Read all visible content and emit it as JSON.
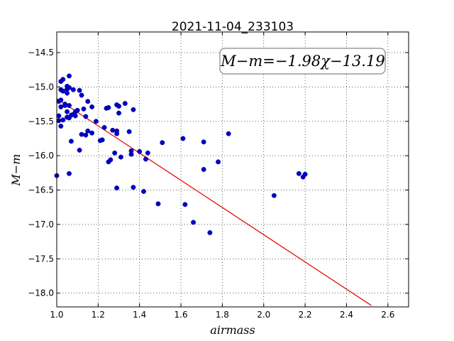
{
  "chart_data": {
    "type": "scatter",
    "title": "2021-11-04_233103",
    "xlabel": "airmass",
    "ylabel": "M−m",
    "annotation": "M−m=−1.98χ−13.19",
    "xlim": [
      1.0,
      2.7
    ],
    "ylim": [
      -18.2,
      -14.2
    ],
    "xticks": [
      1.0,
      1.2,
      1.4,
      1.6,
      1.8,
      2.0,
      2.2,
      2.4,
      2.6
    ],
    "xtick_labels": [
      "1.0",
      "1.2",
      "1.4",
      "1.6",
      "1.8",
      "2.0",
      "2.2",
      "2.4",
      "2.6"
    ],
    "yticks": [
      -14.5,
      -15.0,
      -15.5,
      -16.0,
      -16.5,
      -17.0,
      -17.5,
      -18.0
    ],
    "ytick_labels": [
      "−14.5",
      "−15.0",
      "−15.5",
      "−16.0",
      "−16.5",
      "−17.0",
      "−17.5",
      "−18.0"
    ],
    "grid": true,
    "colors": {
      "points": "#0000c8",
      "fit": "#e00000",
      "frame": "#000000"
    },
    "fit_line": {
      "slope": -1.98,
      "intercept": -13.19,
      "x_range": [
        1.0,
        2.52
      ]
    },
    "points": [
      [
        1.0,
        -16.29
      ],
      [
        1.01,
        -15.21
      ],
      [
        1.01,
        -15.49
      ],
      [
        1.01,
        -15.42
      ],
      [
        1.02,
        -14.92
      ],
      [
        1.02,
        -15.19
      ],
      [
        1.02,
        -15.29
      ],
      [
        1.02,
        -15.57
      ],
      [
        1.02,
        -15.04
      ],
      [
        1.03,
        -14.89
      ],
      [
        1.03,
        -15.48
      ],
      [
        1.03,
        -15.06
      ],
      [
        1.04,
        -15.25
      ],
      [
        1.04,
        -15.27
      ],
      [
        1.05,
        -15.36
      ],
      [
        1.05,
        -15.09
      ],
      [
        1.05,
        -14.99
      ],
      [
        1.05,
        -15.03
      ],
      [
        1.05,
        -15.44
      ],
      [
        1.06,
        -14.84
      ],
      [
        1.06,
        -15.01
      ],
      [
        1.06,
        -16.26
      ],
      [
        1.06,
        -15.27
      ],
      [
        1.06,
        -15.45
      ],
      [
        1.07,
        -15.79
      ],
      [
        1.07,
        -15.41
      ],
      [
        1.08,
        -15.4
      ],
      [
        1.08,
        -15.04
      ],
      [
        1.09,
        -15.36
      ],
      [
        1.09,
        -15.42
      ],
      [
        1.1,
        -15.34
      ],
      [
        1.11,
        -15.05
      ],
      [
        1.11,
        -15.92
      ],
      [
        1.12,
        -15.69
      ],
      [
        1.12,
        -15.12
      ],
      [
        1.13,
        -15.32
      ],
      [
        1.14,
        -15.43
      ],
      [
        1.14,
        -15.7
      ],
      [
        1.15,
        -15.21
      ],
      [
        1.15,
        -15.64
      ],
      [
        1.17,
        -15.29
      ],
      [
        1.17,
        -15.67
      ],
      [
        1.19,
        -15.5
      ],
      [
        1.21,
        -15.78
      ],
      [
        1.22,
        -15.77
      ],
      [
        1.23,
        -15.59
      ],
      [
        1.24,
        -15.31
      ],
      [
        1.25,
        -15.3
      ],
      [
        1.25,
        -16.09
      ],
      [
        1.26,
        -16.06
      ],
      [
        1.27,
        -15.63
      ],
      [
        1.28,
        -15.96
      ],
      [
        1.29,
        -15.68
      ],
      [
        1.29,
        -15.64
      ],
      [
        1.29,
        -15.26
      ],
      [
        1.3,
        -15.38
      ],
      [
        1.3,
        -15.28
      ],
      [
        1.29,
        -16.47
      ],
      [
        1.31,
        -16.02
      ],
      [
        1.33,
        -15.24
      ],
      [
        1.35,
        -15.65
      ],
      [
        1.36,
        -15.93
      ],
      [
        1.36,
        -15.98
      ],
      [
        1.37,
        -16.46
      ],
      [
        1.37,
        -15.33
      ],
      [
        1.4,
        -15.94
      ],
      [
        1.42,
        -16.52
      ],
      [
        1.43,
        -16.05
      ],
      [
        1.44,
        -15.96
      ],
      [
        1.49,
        -16.7
      ],
      [
        1.51,
        -15.81
      ],
      [
        1.61,
        -15.75
      ],
      [
        1.62,
        -16.71
      ],
      [
        1.66,
        -16.97
      ],
      [
        1.71,
        -16.2
      ],
      [
        1.71,
        -15.8
      ],
      [
        1.74,
        -17.12
      ],
      [
        1.78,
        -16.09
      ],
      [
        1.83,
        -15.68
      ],
      [
        2.05,
        -16.58
      ],
      [
        2.17,
        -16.26
      ],
      [
        2.19,
        -16.31
      ],
      [
        2.2,
        -16.27
      ]
    ]
  }
}
